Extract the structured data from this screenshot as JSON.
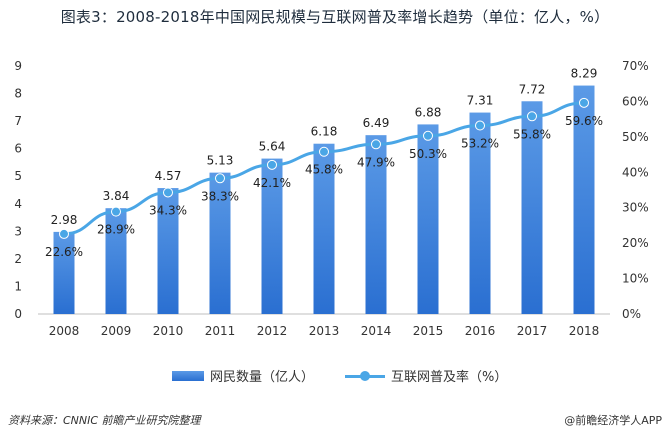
{
  "title": "图表3：2008-2018年中国网民规模与互联网普及率增长趋势（单位：亿人，%）",
  "chart_data": {
    "type": "bar",
    "categories": [
      "2008",
      "2009",
      "2010",
      "2011",
      "2012",
      "2013",
      "2014",
      "2015",
      "2016",
      "2017",
      "2018"
    ],
    "series": [
      {
        "name": "网民数量（亿人）",
        "type": "bar",
        "axis": "left",
        "values": [
          2.98,
          3.84,
          4.57,
          5.13,
          5.64,
          6.18,
          6.49,
          6.88,
          7.31,
          7.72,
          8.29
        ],
        "labels": [
          "2.98",
          "3.84",
          "4.57",
          "5.13",
          "5.64",
          "6.18",
          "6.49",
          "6.88",
          "7.31",
          "7.72",
          "8.29"
        ]
      },
      {
        "name": "互联网普及率（%）",
        "type": "line",
        "axis": "right",
        "values": [
          22.6,
          28.9,
          34.3,
          38.3,
          42.1,
          45.8,
          47.9,
          50.3,
          53.2,
          55.8,
          59.6
        ],
        "labels": [
          "22.6%",
          "28.9%",
          "34.3%",
          "38.3%",
          "42.1%",
          "45.8%",
          "47.9%",
          "50.3%",
          "53.2%",
          "55.8%",
          "59.6%"
        ]
      }
    ],
    "y_left": {
      "min": 0,
      "max": 9,
      "ticks": [
        "0",
        "1",
        "2",
        "3",
        "4",
        "5",
        "6",
        "7",
        "8",
        "9"
      ]
    },
    "y_right": {
      "min": 0,
      "max": 70,
      "ticks": [
        "0%",
        "10%",
        "20%",
        "30%",
        "40%",
        "50%",
        "60%",
        "70%"
      ]
    },
    "grid": false,
    "legend_position": "bottom",
    "colors": {
      "bar_top": "#5b9ae6",
      "bar_bottom": "#2a6fd1",
      "line": "#4aa6e6",
      "axis": "#bfbfbf"
    }
  },
  "legend": {
    "bars_label": "网民数量（亿人）",
    "line_label": "互联网普及率（%）"
  },
  "footer": {
    "source": "资料来源：CNNIC 前瞻产业研究院整理",
    "brand": "@前瞻经济学人APP"
  }
}
